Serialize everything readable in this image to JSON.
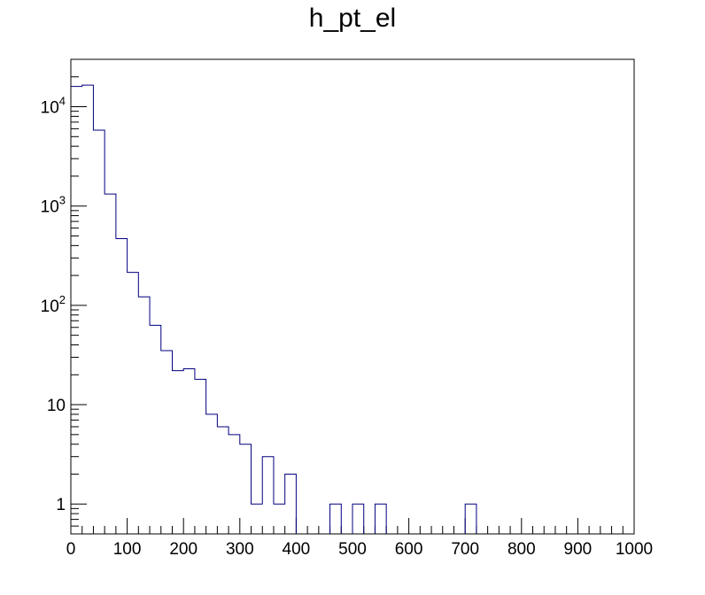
{
  "chart_data": {
    "type": "histogram",
    "title": "h_pt_el",
    "xlabel": "",
    "ylabel": "",
    "xlim": [
      0,
      1000
    ],
    "ylim": [
      0.5,
      30000
    ],
    "y_scale": "log",
    "grid": false,
    "legend": false,
    "series_color": "#000080",
    "bin_width": 20,
    "bin_edges_start": 0,
    "values": [
      16000,
      16500,
      5800,
      1320,
      470,
      215,
      122,
      63,
      35,
      22,
      23,
      18,
      8,
      6,
      5,
      4,
      1,
      3,
      1,
      2,
      0,
      0,
      0,
      1,
      0,
      1,
      0,
      1,
      0,
      0,
      0,
      0,
      0,
      0,
      0,
      1,
      0,
      0,
      0,
      0,
      0,
      0,
      0,
      0,
      0,
      0,
      0,
      0,
      0,
      0
    ],
    "x_tick_labels": [
      "0",
      "100",
      "200",
      "300",
      "400",
      "500",
      "600",
      "700",
      "800",
      "900",
      "1000"
    ],
    "y_tick_labels": [
      {
        "value": 1,
        "base": "1",
        "exp": ""
      },
      {
        "value": 10,
        "base": "10",
        "exp": ""
      },
      {
        "value": 100,
        "base": "10",
        "exp": "2"
      },
      {
        "value": 1000,
        "base": "10",
        "exp": "3"
      },
      {
        "value": 10000,
        "base": "10",
        "exp": "4"
      }
    ]
  }
}
